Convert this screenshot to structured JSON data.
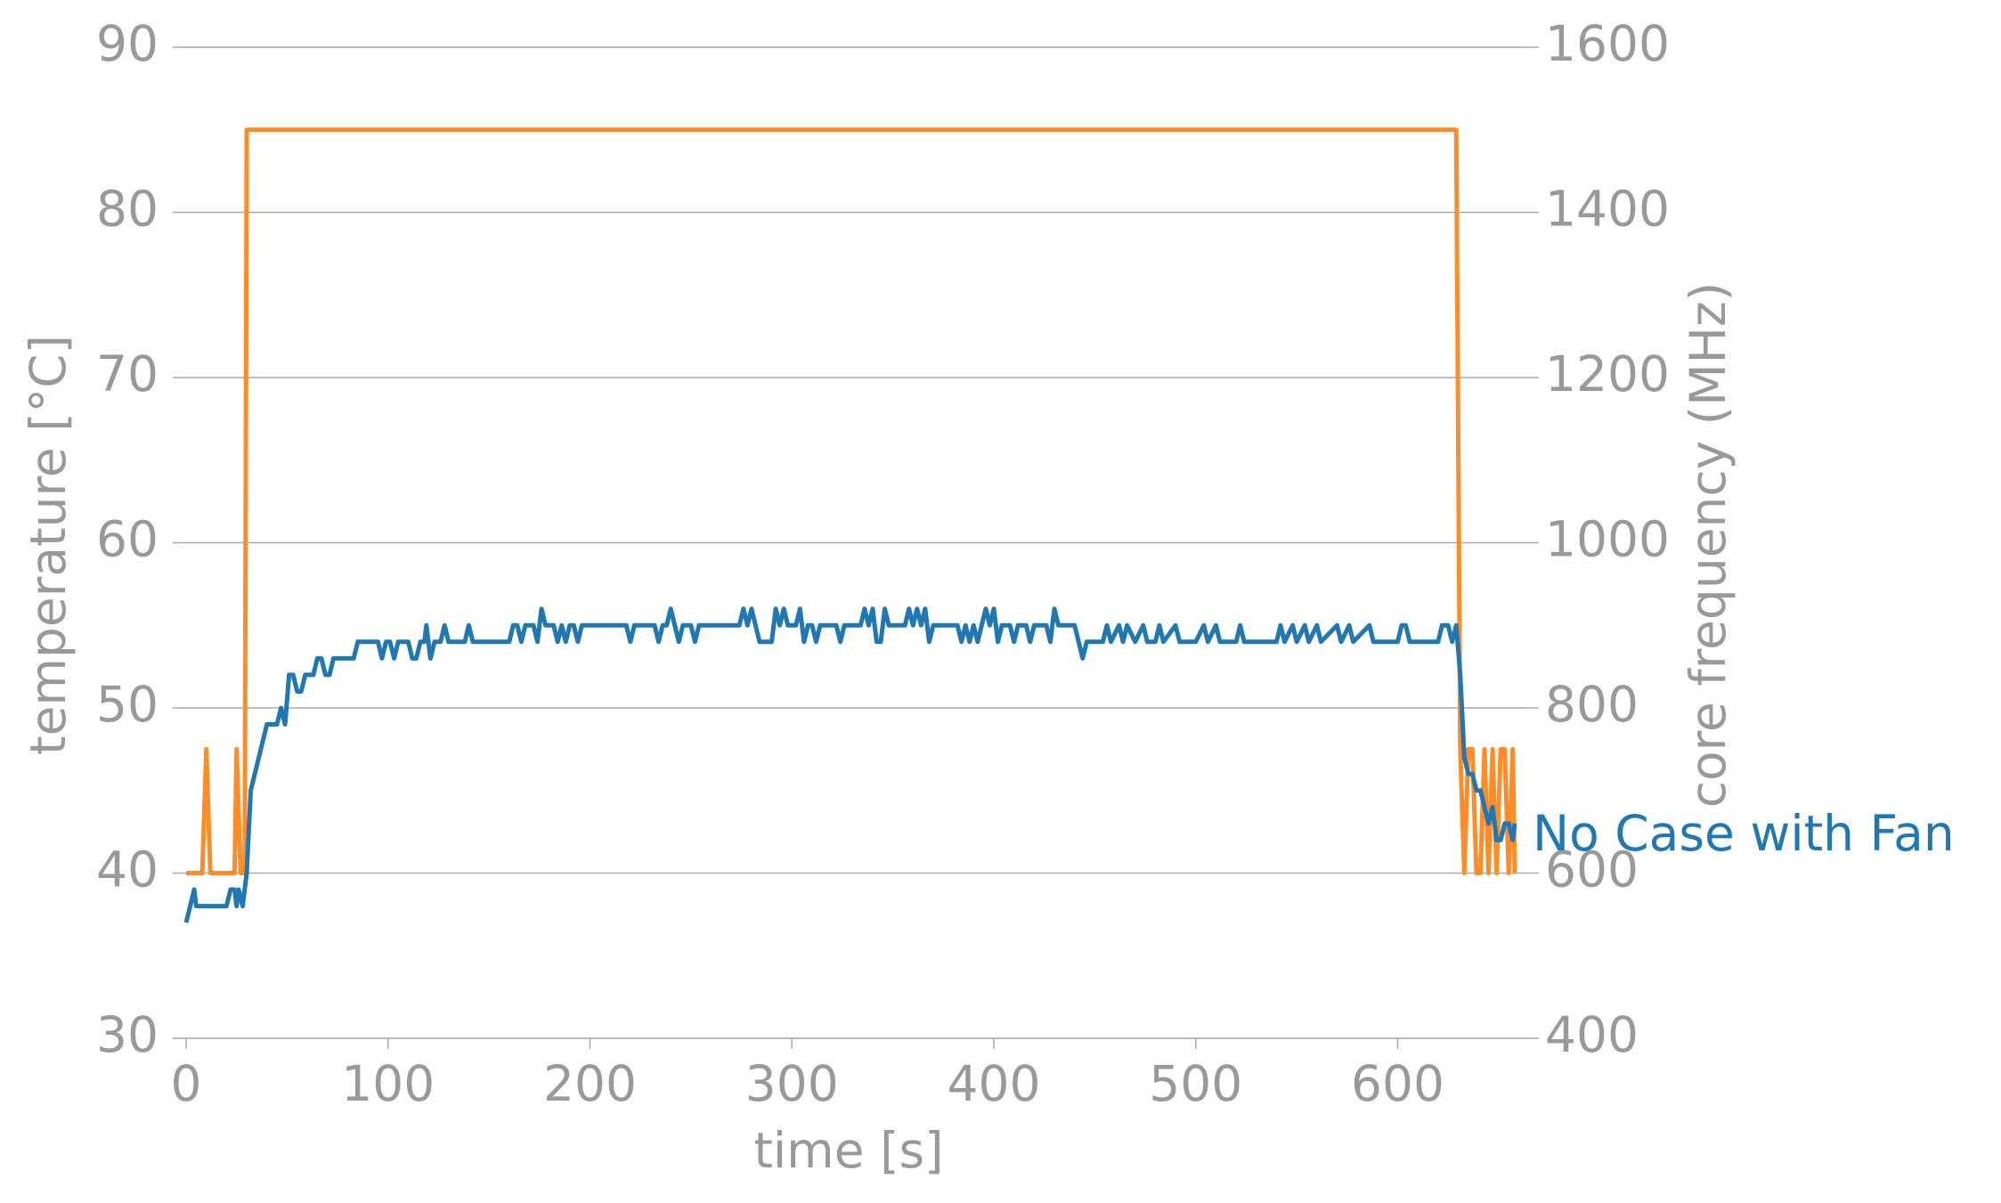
{
  "chart_data": {
    "type": "line",
    "xlabel": "time [s]",
    "ylabel": "temperature [°C]",
    "y2label": "core frequency (MHz)",
    "xlim": [
      0,
      658
    ],
    "xticks": [
      0,
      100,
      200,
      300,
      400,
      500,
      600
    ],
    "ylim": [
      30,
      90
    ],
    "yticks": [
      30,
      40,
      50,
      60,
      70,
      80,
      90
    ],
    "y2lim": [
      400,
      1600
    ],
    "y2ticks": [
      400,
      600,
      800,
      1000,
      1200,
      1400,
      1600
    ],
    "grid": true,
    "series": [
      {
        "name": "No Case with Fan",
        "color": "#1f77b4",
        "x": [
          0,
          2,
          4,
          5,
          20,
          22,
          24,
          25,
          26,
          28,
          30,
          32,
          40,
          45,
          47,
          49,
          51,
          53,
          55,
          57,
          59,
          63,
          65,
          67,
          69,
          71,
          73,
          83,
          85,
          95,
          97,
          99,
          101,
          103,
          105,
          110,
          112,
          114,
          116,
          118,
          119,
          121,
          123,
          126,
          128,
          130,
          138,
          140,
          142,
          160,
          162,
          164,
          166,
          168,
          172,
          174,
          176,
          178,
          182,
          184,
          186,
          188,
          190,
          192,
          194,
          196,
          218,
          220,
          222,
          232,
          234,
          236,
          238,
          240,
          242,
          244,
          246,
          250,
          252,
          254,
          274,
          276,
          278,
          280,
          282,
          284,
          290,
          292,
          294,
          296,
          298,
          302,
          304,
          306,
          308,
          310,
          312,
          314,
          322,
          324,
          326,
          334,
          336,
          338,
          340,
          342,
          344,
          346,
          348,
          356,
          358,
          360,
          362,
          364,
          366,
          368,
          370,
          382,
          384,
          386,
          388,
          390,
          392,
          394,
          396,
          398,
          400,
          402,
          404,
          408,
          410,
          412,
          416,
          418,
          420,
          426,
          428,
          430,
          432,
          440,
          444,
          446,
          454,
          456,
          458,
          462,
          464,
          466,
          470,
          474,
          476,
          480,
          482,
          484,
          490,
          492,
          500,
          504,
          506,
          510,
          512,
          520,
          522,
          524,
          540,
          542,
          544,
          548,
          550,
          554,
          556,
          560,
          562,
          570,
          572,
          576,
          578,
          586,
          588,
          600,
          602,
          604,
          606,
          620,
          622,
          625,
          627,
          629,
          631,
          633,
          635,
          637,
          639,
          641,
          643,
          645,
          647,
          649,
          651,
          653,
          655,
          657,
          658
        ],
        "values": [
          37,
          38,
          39,
          38,
          38,
          39,
          39,
          38,
          39,
          38,
          40,
          45,
          49,
          49,
          50,
          49,
          52,
          52,
          51,
          51,
          52,
          52,
          53,
          53,
          52,
          52,
          53,
          53,
          54,
          54,
          53,
          54,
          54,
          53,
          54,
          54,
          53,
          53,
          54,
          54,
          55,
          53,
          54,
          54,
          55,
          54,
          54,
          55,
          54,
          54,
          55,
          55,
          54,
          55,
          55,
          54,
          56,
          55,
          55,
          54,
          55,
          54,
          55,
          55,
          54,
          55,
          55,
          54,
          55,
          55,
          54,
          55,
          55,
          56,
          55,
          54,
          55,
          55,
          54,
          55,
          55,
          56,
          55,
          56,
          55,
          54,
          54,
          56,
          55,
          56,
          55,
          55,
          56,
          54,
          55,
          55,
          54,
          55,
          55,
          54,
          55,
          55,
          56,
          55,
          56,
          54,
          54,
          56,
          55,
          55,
          56,
          55,
          56,
          55,
          56,
          54,
          55,
          55,
          54,
          55,
          54,
          55,
          54,
          55,
          56,
          55,
          56,
          54,
          55,
          55,
          54,
          55,
          55,
          54,
          55,
          55,
          54,
          56,
          55,
          55,
          53,
          54,
          54,
          55,
          54,
          55,
          54,
          55,
          54,
          55,
          54,
          54,
          55,
          54,
          55,
          54,
          54,
          55,
          54,
          55,
          54,
          54,
          55,
          54,
          54,
          55,
          54,
          55,
          54,
          55,
          54,
          55,
          54,
          55,
          54,
          55,
          54,
          55,
          54,
          54,
          55,
          55,
          54,
          54,
          55,
          55,
          54,
          55,
          52,
          47,
          46,
          46,
          45,
          45,
          44,
          43,
          44,
          42,
          42,
          43,
          43,
          42,
          43
        ]
      },
      {
        "color": "#ff8c26",
        "axis": "y2",
        "x": [
          0,
          8,
          10,
          12,
          24,
          25,
          27,
          29,
          30,
          629,
          631,
          633,
          635,
          637,
          639,
          641,
          643,
          645,
          647,
          649,
          651,
          653,
          655,
          657,
          658
        ],
        "values": [
          600,
          600,
          750,
          600,
          600,
          750,
          600,
          600,
          1500,
          1500,
          750,
          600,
          750,
          750,
          600,
          600,
          750,
          600,
          750,
          600,
          750,
          750,
          600,
          750,
          600
        ]
      }
    ]
  }
}
